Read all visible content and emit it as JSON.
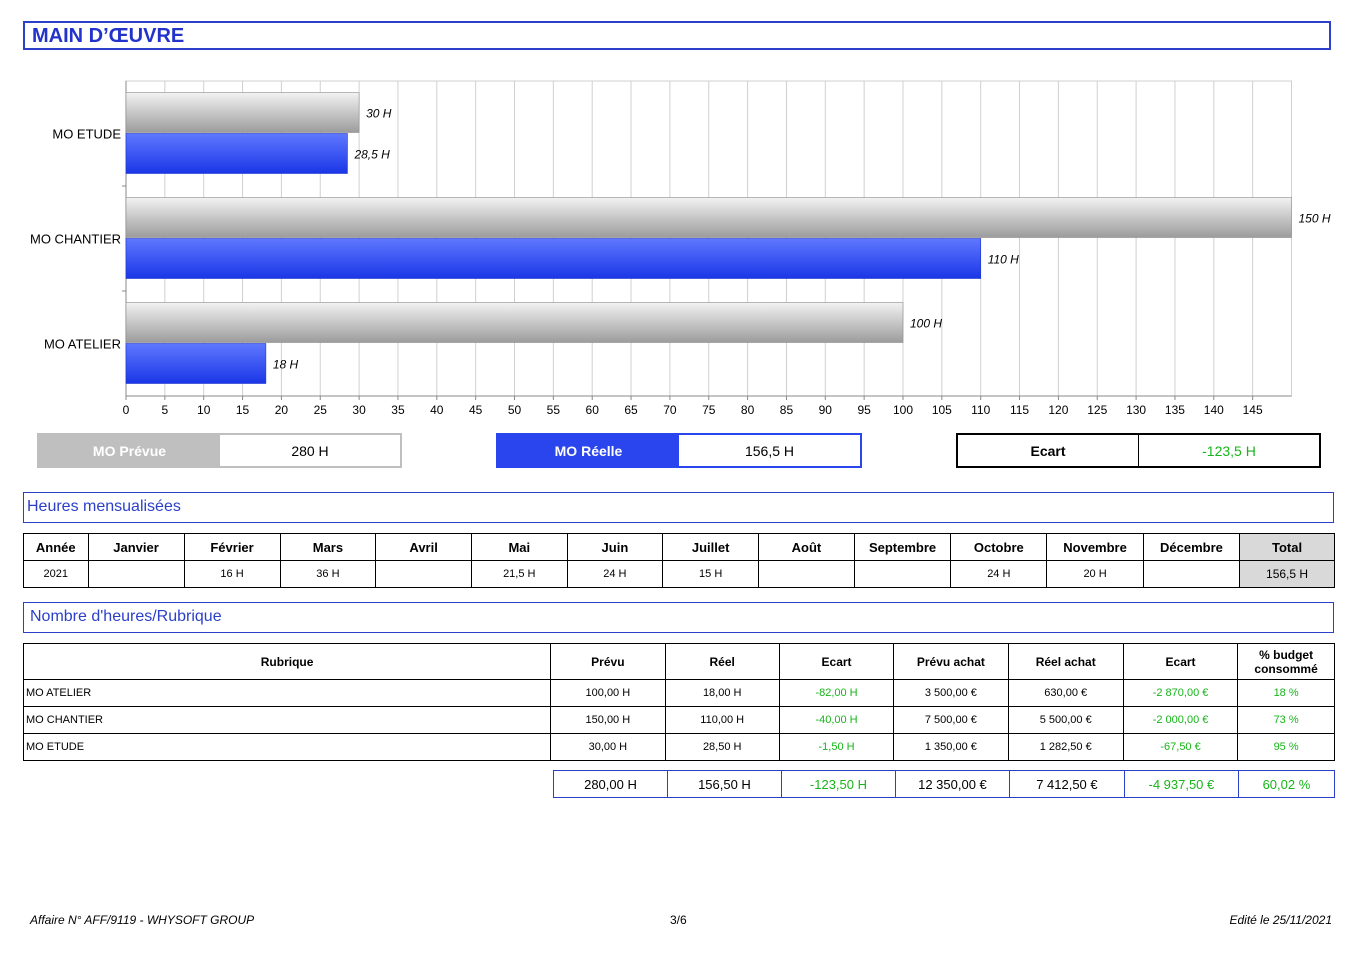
{
  "page": {
    "title": "MAIN D’ŒUVRE"
  },
  "chart_data": {
    "type": "bar",
    "orientation": "horizontal",
    "categories": [
      "MO ETUDE",
      "MO CHANTIER",
      "MO ATELIER"
    ],
    "series": [
      {
        "key": "prevu",
        "values": [
          30,
          150,
          100
        ],
        "labels": [
          "30 H",
          "150 H",
          "100 H"
        ],
        "color": "#a9a9a9"
      },
      {
        "key": "reel",
        "values": [
          28.5,
          110,
          18
        ],
        "labels": [
          "28,5 H",
          "110 H",
          "18 H"
        ],
        "color": "#2a44ee"
      }
    ],
    "xlim": [
      0,
      150
    ],
    "xticks": [
      0,
      5,
      10,
      15,
      20,
      25,
      30,
      35,
      40,
      45,
      50,
      55,
      60,
      65,
      70,
      75,
      80,
      85,
      90,
      95,
      100,
      105,
      110,
      115,
      120,
      125,
      130,
      135,
      140,
      145
    ],
    "grid": true
  },
  "summary": {
    "prevue": {
      "label": "MO Prévue",
      "value": "280 H"
    },
    "reelle": {
      "label": "MO Réelle",
      "value": "156,5 H"
    },
    "ecart": {
      "label": "Ecart",
      "value": "-123,5 H"
    }
  },
  "monthly": {
    "title": "Heures mensualisées",
    "headers": [
      "Année",
      "Janvier",
      "Février",
      "Mars",
      "Avril",
      "Mai",
      "Juin",
      "Juillet",
      "Août",
      "Septembre",
      "Octobre",
      "Novembre",
      "Décembre",
      "Total"
    ],
    "row": [
      "2021",
      "",
      "16 H",
      "36 H",
      "",
      "21,5 H",
      "24 H",
      "15 H",
      "",
      "",
      "24 H",
      "20 H",
      "",
      "156,5 H"
    ]
  },
  "rubrique": {
    "title": "Nombre d'heures/Rubrique",
    "headers": [
      "Rubrique",
      "Prévu",
      "Réel",
      "Ecart",
      "Prévu achat",
      "Réel achat",
      "Ecart",
      "% budget consommé"
    ],
    "rows": [
      [
        "MO ATELIER",
        "100,00 H",
        "18,00 H",
        "-82,00 H",
        "3 500,00 €",
        "630,00 €",
        "-2 870,00 €",
        "18 %"
      ],
      [
        "MO CHANTIER",
        "150,00 H",
        "110,00 H",
        "-40,00 H",
        "7 500,00 €",
        "5 500,00 €",
        "-2 000,00 €",
        "73 %"
      ],
      [
        "MO ETUDE",
        "30,00 H",
        "28,50 H",
        "-1,50 H",
        "1 350,00 €",
        "1 282,50 €",
        "-67,50 €",
        "95 %"
      ]
    ],
    "totals": [
      "280,00 H",
      "156,50 H",
      "-123,50 H",
      "12 350,00 €",
      "7 412,50 €",
      "-4 937,50 €",
      "60,02 %"
    ]
  },
  "footer": {
    "left": "Affaire N° AFF/9119 - WHYSOFT GROUP",
    "center": "3/6",
    "right": "Edité le 25/11/2021"
  }
}
